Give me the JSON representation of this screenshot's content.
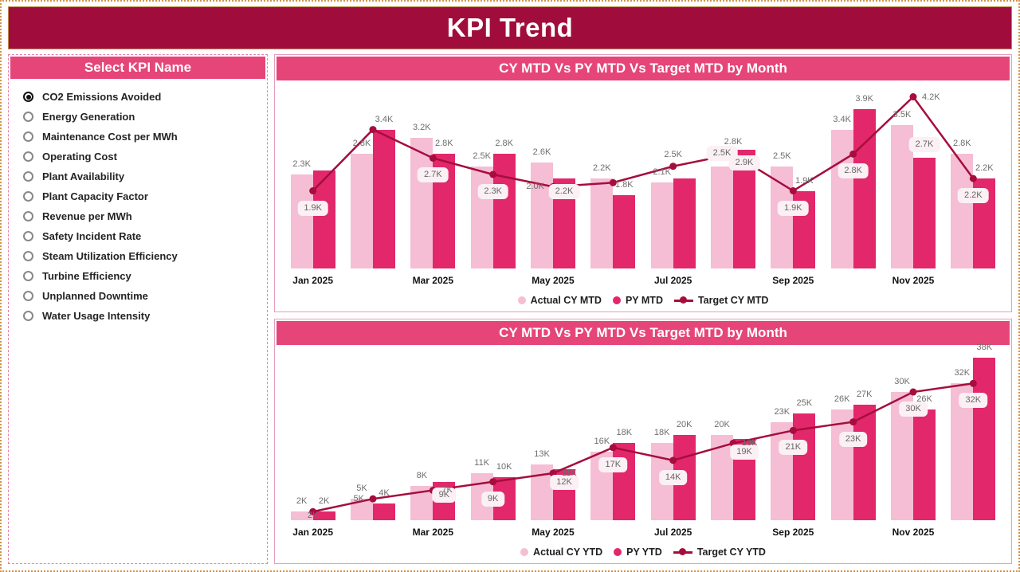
{
  "page": {
    "title": "KPI Trend"
  },
  "sidebar": {
    "header": "Select KPI Name",
    "items": [
      {
        "label": "CO2 Emissions Avoided",
        "selected": true
      },
      {
        "label": "Energy Generation",
        "selected": false
      },
      {
        "label": "Maintenance Cost per MWh",
        "selected": false
      },
      {
        "label": "Operating Cost",
        "selected": false
      },
      {
        "label": "Plant Availability",
        "selected": false
      },
      {
        "label": "Plant Capacity Factor",
        "selected": false
      },
      {
        "label": "Revenue per MWh",
        "selected": false
      },
      {
        "label": "Safety Incident Rate",
        "selected": false
      },
      {
        "label": "Steam Utilization Efficiency",
        "selected": false
      },
      {
        "label": "Turbine Efficiency",
        "selected": false
      },
      {
        "label": "Unplanned Downtime",
        "selected": false
      },
      {
        "label": "Water Usage Intensity",
        "selected": false
      }
    ]
  },
  "colors": {
    "header_bg": "#A00D3C",
    "accent_pink": "#E64579",
    "bar_light": "#F5BED4",
    "bar_dark": "#E2276B",
    "line": "#A60D3D",
    "label_box_bg": "#FBF0F4",
    "gold_border": "#D0924A"
  },
  "chart_data": [
    {
      "type": "combo",
      "title": "CY MTD Vs PY MTD Vs Target MTD by Month",
      "categories": [
        "Jan 2025",
        "Feb 2025",
        "Mar 2025",
        "Apr 2025",
        "May 2025",
        "Jun 2025",
        "Jul 2025",
        "Aug 2025",
        "Sep 2025",
        "Oct 2025",
        "Nov 2025",
        "Dec 2025"
      ],
      "x_axis_labels": [
        "Jan 2025",
        "",
        "Mar 2025",
        "",
        "May 2025",
        "",
        "Jul 2025",
        "",
        "Sep 2025",
        "",
        "Nov 2025",
        ""
      ],
      "ylim": [
        0,
        4.6
      ],
      "legend_position": "bottom",
      "series": [
        {
          "name": "Actual CY MTD",
          "kind": "bar",
          "color": "#F5BED4",
          "values": [
            2.3,
            2.8,
            3.2,
            2.5,
            2.6,
            2.2,
            2.1,
            2.5,
            2.5,
            3.4,
            3.5,
            2.8
          ],
          "labels": [
            "2.3K",
            "2.8K",
            "3.2K",
            "2.5K",
            "2.6K",
            "2.2K",
            "2.1K",
            "2.5K",
            "2.5K",
            "3.4K",
            "3.5K",
            "2.8K"
          ],
          "boxed": [
            0,
            0,
            0,
            0,
            0,
            0,
            0,
            1,
            0,
            0,
            0,
            0
          ],
          "pos": [
            "above",
            "above",
            "above",
            "above",
            "above",
            "above",
            "above",
            "above",
            "above",
            "above",
            "above",
            "above"
          ]
        },
        {
          "name": "PY MTD",
          "kind": "bar",
          "color": "#E2276B",
          "values": [
            2.4,
            3.4,
            2.8,
            2.8,
            2.2,
            1.8,
            2.2,
            2.9,
            1.9,
            3.9,
            2.7,
            2.2
          ],
          "labels": [
            "",
            "3.4K",
            "2.8K",
            "2.8K",
            "2.2K",
            "1.8K",
            "",
            "2.9K",
            "1.9K",
            "3.9K",
            "2.7K",
            "2.2K"
          ],
          "boxed": [
            0,
            0,
            0,
            0,
            1,
            0,
            0,
            1,
            0,
            0,
            1,
            0
          ],
          "pos": [
            "above",
            "above",
            "above",
            "above",
            "inside",
            "above",
            "above",
            "inside",
            "above",
            "above",
            "above",
            "above"
          ]
        },
        {
          "name": "Target CY MTD",
          "kind": "line",
          "color": "#A60D3D",
          "values": [
            1.9,
            3.4,
            2.7,
            2.3,
            2.0,
            2.1,
            2.5,
            2.8,
            1.9,
            2.8,
            4.2,
            2.2
          ],
          "labels": [
            "1.9K",
            "",
            "2.7K",
            "2.3K",
            "2.0K",
            "",
            "2.5K",
            "2.8K",
            "1.9K",
            "2.8K",
            "4.2K",
            "2.2K"
          ],
          "boxed": [
            1,
            0,
            1,
            1,
            0,
            0,
            0,
            0,
            1,
            1,
            0,
            1
          ],
          "pos": [
            "below",
            "above",
            "below",
            "below",
            "left",
            "above",
            "above",
            "above",
            "below",
            "below",
            "right",
            "below"
          ]
        }
      ]
    },
    {
      "type": "combo",
      "title": "CY MTD Vs PY MTD Vs Target MTD by Month",
      "categories": [
        "Jan 2025",
        "Feb 2025",
        "Mar 2025",
        "Apr 2025",
        "May 2025",
        "Jun 2025",
        "Jul 2025",
        "Aug 2025",
        "Sep 2025",
        "Oct 2025",
        "Nov 2025",
        "Dec 2025"
      ],
      "x_axis_labels": [
        "Jan 2025",
        "",
        "Mar 2025",
        "",
        "May 2025",
        "",
        "Jul 2025",
        "",
        "Sep 2025",
        "",
        "Nov 2025",
        ""
      ],
      "ylim": [
        0,
        41
      ],
      "legend_position": "bottom",
      "series": [
        {
          "name": "Actual CY YTD",
          "kind": "bar",
          "color": "#F5BED4",
          "values": [
            2,
            5,
            8,
            11,
            13,
            16,
            18,
            20,
            23,
            26,
            30,
            32
          ],
          "labels": [
            "2K",
            "5K",
            "8K",
            "11K",
            "13K",
            "16K",
            "18K",
            "20K",
            "23K",
            "26K",
            "30K",
            "32K"
          ],
          "boxed": [
            0,
            0,
            0,
            0,
            0,
            0,
            0,
            0,
            0,
            0,
            0,
            0
          ],
          "pos": [
            "above",
            "above",
            "above",
            "above",
            "above",
            "above",
            "above",
            "above",
            "above",
            "above",
            "above",
            "above"
          ]
        },
        {
          "name": "PY YTD",
          "kind": "bar",
          "color": "#E2276B",
          "values": [
            2,
            4,
            9,
            10,
            12,
            18,
            20,
            19,
            25,
            27,
            26,
            38
          ],
          "labels": [
            "2K",
            "4K",
            "9K",
            "10K",
            "12K",
            "18K",
            "20K",
            "19K",
            "25K",
            "27K",
            "26K",
            "38K"
          ],
          "boxed": [
            0,
            0,
            1,
            0,
            1,
            0,
            0,
            1,
            0,
            0,
            0,
            0
          ],
          "pos": [
            "above",
            "above",
            "inside",
            "above",
            "inside",
            "above",
            "above",
            "inside",
            "above",
            "above",
            "above",
            "above"
          ]
        },
        {
          "name": "Target CY YTD",
          "kind": "line",
          "color": "#A60D3D",
          "values": [
            2,
            5,
            7,
            9,
            11,
            17,
            14,
            18,
            21,
            23,
            30,
            32
          ],
          "labels": [
            "2K",
            "5K",
            "7K",
            "9K",
            "11K",
            "17K",
            "14K",
            "18K",
            "21K",
            "23K",
            "30K",
            "32K"
          ],
          "boxed": [
            0,
            0,
            0,
            1,
            0,
            1,
            1,
            0,
            1,
            1,
            1,
            1
          ],
          "pos": [
            "below",
            "left",
            "right",
            "below",
            "right",
            "below",
            "below",
            "right",
            "below",
            "below",
            "below",
            "below"
          ]
        }
      ]
    }
  ]
}
